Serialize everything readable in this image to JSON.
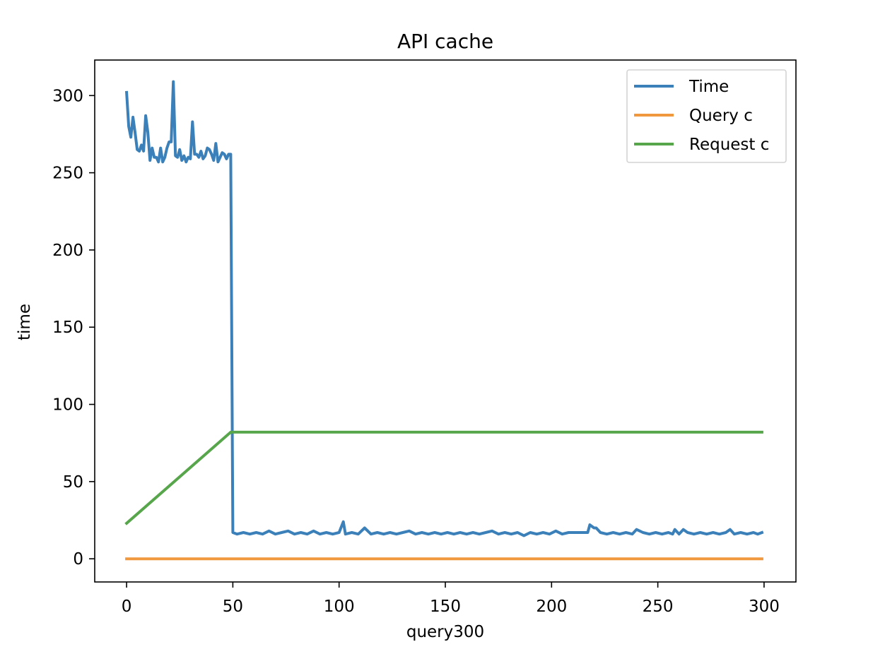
{
  "chart_data": {
    "type": "line",
    "title": "API cache",
    "xlabel": "query300",
    "ylabel": "time",
    "xlim": [
      -15,
      315
    ],
    "ylim": [
      -15,
      323
    ],
    "xticks": [
      0,
      50,
      100,
      150,
      200,
      250,
      300
    ],
    "yticks": [
      0,
      50,
      100,
      150,
      200,
      250,
      300
    ],
    "grid": false,
    "legend_position": "top-right",
    "series": [
      {
        "name": "Time",
        "color": "#3b80b9",
        "points": [
          [
            0,
            302
          ],
          [
            1,
            280
          ],
          [
            2,
            273
          ],
          [
            3,
            286
          ],
          [
            4,
            276
          ],
          [
            5,
            265
          ],
          [
            6,
            264
          ],
          [
            7,
            268
          ],
          [
            8,
            264
          ],
          [
            9,
            287
          ],
          [
            10,
            276
          ],
          [
            11,
            258
          ],
          [
            12,
            266
          ],
          [
            13,
            260
          ],
          [
            14,
            260
          ],
          [
            15,
            257
          ],
          [
            16,
            266
          ],
          [
            17,
            257
          ],
          [
            18,
            260
          ],
          [
            19,
            266
          ],
          [
            20,
            270
          ],
          [
            21,
            270
          ],
          [
            22,
            309
          ],
          [
            23,
            261
          ],
          [
            24,
            260
          ],
          [
            25,
            265
          ],
          [
            26,
            258
          ],
          [
            27,
            261
          ],
          [
            28,
            257
          ],
          [
            29,
            260
          ],
          [
            30,
            259
          ],
          [
            31,
            283
          ],
          [
            32,
            262
          ],
          [
            33,
            262
          ],
          [
            34,
            260
          ],
          [
            35,
            264
          ],
          [
            36,
            259
          ],
          [
            37,
            261
          ],
          [
            38,
            266
          ],
          [
            39,
            265
          ],
          [
            40,
            262
          ],
          [
            41,
            258
          ],
          [
            42,
            269
          ],
          [
            43,
            257
          ],
          [
            44,
            260
          ],
          [
            45,
            263
          ],
          [
            46,
            262
          ],
          [
            47,
            259
          ],
          [
            48,
            262
          ],
          [
            49,
            262
          ],
          [
            50,
            17
          ],
          [
            52,
            16
          ],
          [
            55,
            17
          ],
          [
            58,
            16
          ],
          [
            61,
            17
          ],
          [
            64,
            16
          ],
          [
            67,
            18
          ],
          [
            70,
            16
          ],
          [
            73,
            17
          ],
          [
            76,
            18
          ],
          [
            79,
            16
          ],
          [
            82,
            17
          ],
          [
            85,
            16
          ],
          [
            88,
            18
          ],
          [
            91,
            16
          ],
          [
            94,
            17
          ],
          [
            97,
            16
          ],
          [
            100,
            17
          ],
          [
            102,
            24
          ],
          [
            103,
            16
          ],
          [
            106,
            17
          ],
          [
            109,
            16
          ],
          [
            112,
            20
          ],
          [
            115,
            16
          ],
          [
            118,
            17
          ],
          [
            121,
            16
          ],
          [
            124,
            17
          ],
          [
            127,
            16
          ],
          [
            130,
            17
          ],
          [
            133,
            18
          ],
          [
            136,
            16
          ],
          [
            139,
            17
          ],
          [
            142,
            16
          ],
          [
            145,
            17
          ],
          [
            148,
            16
          ],
          [
            151,
            17
          ],
          [
            154,
            16
          ],
          [
            157,
            17
          ],
          [
            160,
            16
          ],
          [
            163,
            17
          ],
          [
            166,
            16
          ],
          [
            169,
            17
          ],
          [
            172,
            18
          ],
          [
            175,
            16
          ],
          [
            178,
            17
          ],
          [
            181,
            16
          ],
          [
            184,
            17
          ],
          [
            187,
            15
          ],
          [
            190,
            17
          ],
          [
            193,
            16
          ],
          [
            196,
            17
          ],
          [
            199,
            16
          ],
          [
            202,
            18
          ],
          [
            205,
            16
          ],
          [
            208,
            17
          ],
          [
            211,
            17
          ],
          [
            214,
            17
          ],
          [
            217,
            17
          ],
          [
            218,
            22
          ],
          [
            220,
            20
          ],
          [
            221,
            20
          ],
          [
            223,
            17
          ],
          [
            226,
            16
          ],
          [
            229,
            17
          ],
          [
            232,
            16
          ],
          [
            235,
            17
          ],
          [
            238,
            16
          ],
          [
            240,
            19
          ],
          [
            243,
            17
          ],
          [
            246,
            16
          ],
          [
            249,
            17
          ],
          [
            252,
            16
          ],
          [
            255,
            17
          ],
          [
            257,
            16
          ],
          [
            258,
            19
          ],
          [
            260,
            16
          ],
          [
            262,
            19
          ],
          [
            264,
            17
          ],
          [
            267,
            16
          ],
          [
            270,
            17
          ],
          [
            273,
            16
          ],
          [
            276,
            17
          ],
          [
            279,
            16
          ],
          [
            282,
            17
          ],
          [
            284,
            19
          ],
          [
            286,
            16
          ],
          [
            289,
            17
          ],
          [
            292,
            16
          ],
          [
            295,
            17
          ],
          [
            297,
            16
          ],
          [
            299,
            17
          ]
        ]
      },
      {
        "name": "Query c",
        "color": "#f0983e",
        "points": [
          [
            0,
            0
          ],
          [
            299,
            0
          ]
        ]
      },
      {
        "name": "Request c",
        "color": "#58a64c",
        "points": [
          [
            0,
            23
          ],
          [
            49,
            82
          ],
          [
            299,
            82
          ]
        ]
      }
    ]
  }
}
